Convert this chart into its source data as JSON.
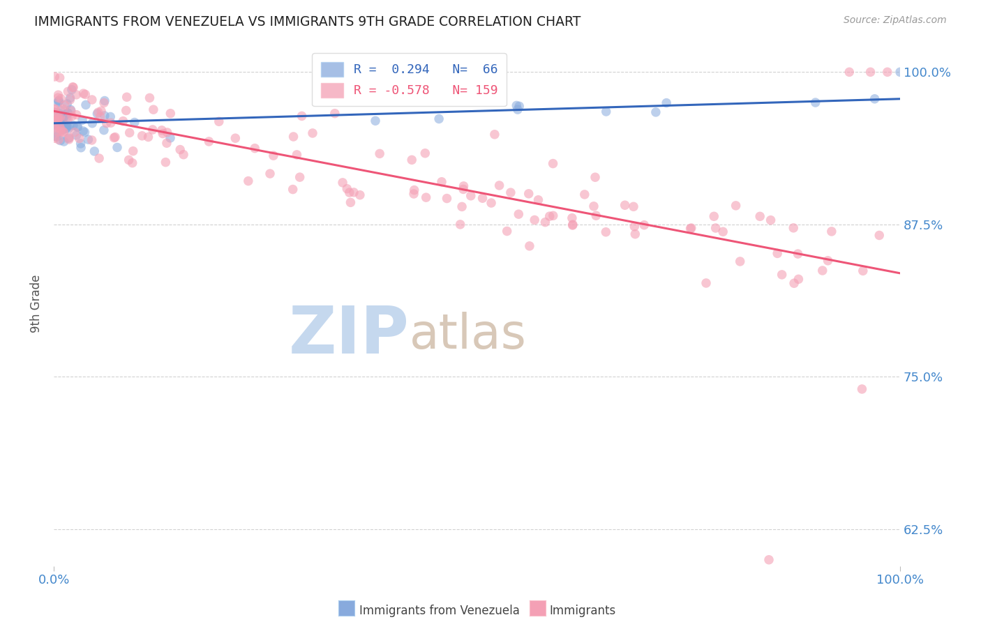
{
  "title": "IMMIGRANTS FROM VENEZUELA VS IMMIGRANTS 9TH GRADE CORRELATION CHART",
  "source_text": "Source: ZipAtlas.com",
  "ylabel": "9th Grade",
  "xlim": [
    0.0,
    1.0
  ],
  "ylim": [
    0.595,
    1.025
  ],
  "x_tick_labels": [
    "0.0%",
    "100.0%"
  ],
  "y_tick_labels": [
    "62.5%",
    "75.0%",
    "87.5%",
    "100.0%"
  ],
  "y_ticks": [
    0.625,
    0.75,
    0.875,
    1.0
  ],
  "blue_color": "#88aadd",
  "pink_color": "#f4a0b5",
  "blue_line_color": "#3366bb",
  "pink_line_color": "#ee5577",
  "title_color": "#222222",
  "source_color": "#999999",
  "tick_label_color": "#4488cc",
  "grid_color": "#cccccc",
  "background_color": "#ffffff",
  "blue_N": 66,
  "pink_N": 159,
  "blue_line_x": [
    0.0,
    1.0
  ],
  "blue_line_y": [
    0.958,
    0.978
  ],
  "pink_line_x": [
    0.0,
    1.0
  ],
  "pink_line_y": [
    0.968,
    0.835
  ],
  "legend_blue_text": "R =  0.294   N=  66",
  "legend_pink_text": "R = -0.578   N= 159"
}
